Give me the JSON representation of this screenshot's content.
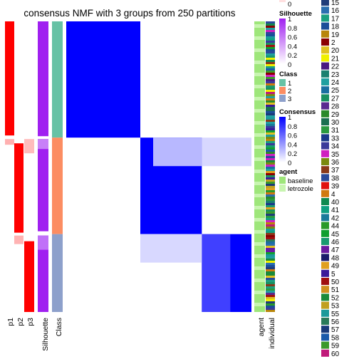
{
  "chart_data": {
    "type": "heatmap",
    "title": "consensus NMF with 3 groups from 250 partitions",
    "column_labels": [
      "p1",
      "p2",
      "p3",
      "Silhouette",
      "Class",
      "agent",
      "individual"
    ],
    "groups": [
      {
        "class": "1",
        "fraction": 0.4
      },
      {
        "class": "2",
        "fraction": 0.332
      },
      {
        "class": "3",
        "fraction": 0.268
      }
    ],
    "legends": {
      "top_scale": {
        "ticks": [
          "0"
        ]
      },
      "silhouette": {
        "title": "Silhouette",
        "ticks": [
          "1",
          "0.8",
          "0.6",
          "0.4",
          "0.2",
          "0"
        ],
        "low": "#ffffff",
        "high": "#a020f0"
      },
      "class": {
        "title": "Class",
        "entries": [
          {
            "label": "1",
            "color": "#66c2a5"
          },
          {
            "label": "2",
            "color": "#fc8d62"
          },
          {
            "label": "3",
            "color": "#8da0cb"
          }
        ]
      },
      "consensus": {
        "title": "Consensus",
        "ticks": [
          "1",
          "0.8",
          "0.6",
          "0.4",
          "0.2",
          "0"
        ],
        "low": "#ffffff",
        "high": "#0000ff"
      },
      "agent": {
        "title": "agent",
        "entries": [
          {
            "label": "baseline",
            "color": "#9ee67a"
          },
          {
            "label": "letrozole",
            "color": "#c8f5b0"
          }
        ]
      },
      "individual": {
        "entries": [
          {
            "label": "15",
            "color": "#1f3d7a"
          },
          {
            "label": "16",
            "color": "#2a6fb0"
          },
          {
            "label": "17",
            "color": "#1aa080"
          },
          {
            "label": "18",
            "color": "#1a4d99"
          },
          {
            "label": "19",
            "color": "#b8860b"
          },
          {
            "label": "2",
            "color": "#8b0000"
          },
          {
            "label": "20",
            "color": "#e0c020"
          },
          {
            "label": "21",
            "color": "#f0f000"
          },
          {
            "label": "22",
            "color": "#4b1a80"
          },
          {
            "label": "23",
            "color": "#1a8070"
          },
          {
            "label": "24",
            "color": "#20a0a0"
          },
          {
            "label": "25",
            "color": "#1a6fa0"
          },
          {
            "label": "27",
            "color": "#1a9060"
          },
          {
            "label": "28",
            "color": "#5a2a90"
          },
          {
            "label": "29",
            "color": "#2a8a2a"
          },
          {
            "label": "30",
            "color": "#1a7050"
          },
          {
            "label": "31",
            "color": "#2a9a40"
          },
          {
            "label": "33",
            "color": "#1a3a8a"
          },
          {
            "label": "34",
            "color": "#3a3a9a"
          },
          {
            "label": "35",
            "color": "#d020c0"
          },
          {
            "label": "36",
            "color": "#7a8a10"
          },
          {
            "label": "37",
            "color": "#8a3a1a"
          },
          {
            "label": "38",
            "color": "#2a4a9a"
          },
          {
            "label": "39",
            "color": "#e01010"
          },
          {
            "label": "4",
            "color": "#d07a10"
          },
          {
            "label": "40",
            "color": "#108a50"
          },
          {
            "label": "41",
            "color": "#10a080"
          },
          {
            "label": "42",
            "color": "#1a7a9a"
          },
          {
            "label": "44",
            "color": "#2a9a2a"
          },
          {
            "label": "45",
            "color": "#10a030"
          },
          {
            "label": "46",
            "color": "#1a9a70"
          },
          {
            "label": "47",
            "color": "#6a1aa0"
          },
          {
            "label": "48",
            "color": "#1a1a6a"
          },
          {
            "label": "49",
            "color": "#e0a020"
          },
          {
            "label": "5",
            "color": "#3a1a9a"
          },
          {
            "label": "50",
            "color": "#a01010"
          },
          {
            "label": "51",
            "color": "#d09020"
          },
          {
            "label": "52",
            "color": "#1a8a3a"
          },
          {
            "label": "53",
            "color": "#c0a020"
          },
          {
            "label": "55",
            "color": "#1a9a9a"
          },
          {
            "label": "56",
            "color": "#2a7a5a"
          },
          {
            "label": "57",
            "color": "#1a3a7a"
          },
          {
            "label": "58",
            "color": "#1a5aaa"
          },
          {
            "label": "59",
            "color": "#3a9a2a"
          },
          {
            "label": "60",
            "color": "#c01a7a"
          }
        ]
      }
    }
  }
}
